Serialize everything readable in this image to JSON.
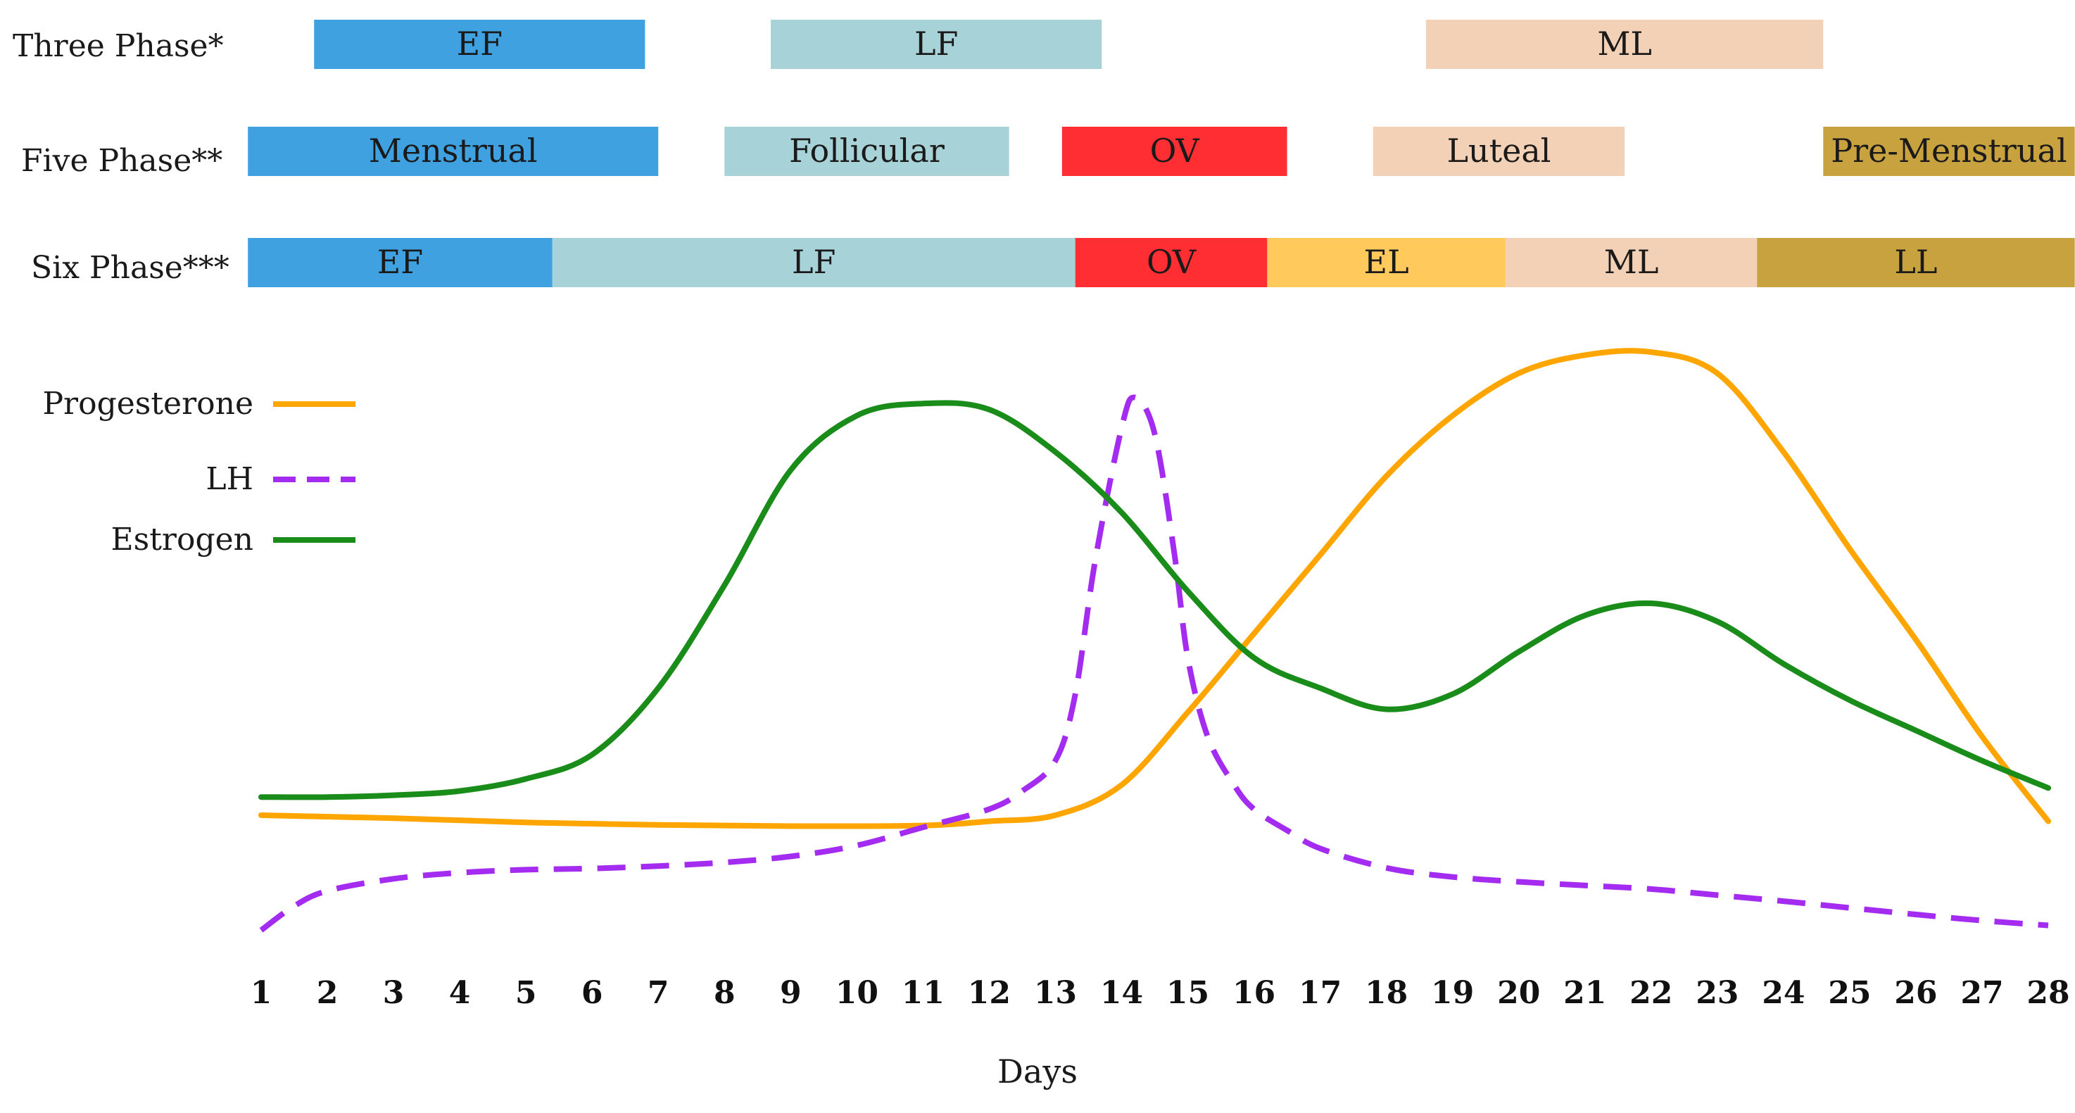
{
  "chart_data": {
    "type": "line",
    "title": "",
    "xlabel": "Days",
    "ylabel": "",
    "x": [
      1,
      2,
      3,
      4,
      5,
      6,
      7,
      8,
      9,
      10,
      11,
      12,
      13,
      14,
      15,
      16,
      17,
      18,
      19,
      20,
      21,
      22,
      23,
      24,
      25,
      26,
      27,
      28
    ],
    "xlim": [
      1,
      28
    ],
    "ylim": [
      0,
      100
    ],
    "grid": false,
    "legend_position": "upper-left",
    "phase_rows": [
      {
        "label": "Three Phase*",
        "phases": [
          {
            "label": "EF",
            "start": 1.8,
            "end": 6.8,
            "color": "#3fa1e0"
          },
          {
            "label": "LF",
            "start": 8.7,
            "end": 13.7,
            "color": "#a7d2d8"
          },
          {
            "label": "ML",
            "start": 18.6,
            "end": 24.6,
            "color": "#f3d1b6"
          }
        ]
      },
      {
        "label": "Five Phase**",
        "phases": [
          {
            "label": "Menstrual",
            "start": 0.8,
            "end": 7.0,
            "color": "#3fa1e0"
          },
          {
            "label": "Follicular",
            "start": 8.0,
            "end": 12.3,
            "color": "#a7d2d8"
          },
          {
            "label": "OV",
            "start": 13.1,
            "end": 16.5,
            "color": "#ff2e33"
          },
          {
            "label": "Luteal",
            "start": 17.8,
            "end": 21.6,
            "color": "#f3d1b6"
          },
          {
            "label": "Pre-Menstrual",
            "start": 24.6,
            "end": 28.4,
            "color": "#c9a240"
          }
        ]
      },
      {
        "label": "Six Phase***",
        "phases": [
          {
            "label": "EF",
            "start": 0.8,
            "end": 5.4,
            "color": "#3fa1e0"
          },
          {
            "label": "LF",
            "start": 5.4,
            "end": 13.3,
            "color": "#a7d2d8"
          },
          {
            "label": "OV",
            "start": 13.3,
            "end": 16.2,
            "color": "#ff2e33"
          },
          {
            "label": "EL",
            "start": 16.2,
            "end": 19.8,
            "color": "#ffc95c"
          },
          {
            "label": "ML",
            "start": 19.8,
            "end": 23.6,
            "color": "#f3d1b6"
          },
          {
            "label": "LL",
            "start": 23.6,
            "end": 28.4,
            "color": "#c9a240"
          }
        ]
      }
    ],
    "series": [
      {
        "name": "Progesterone",
        "color": "#ffa500",
        "style": "solid",
        "x": [
          1,
          3,
          5,
          7,
          9,
          11,
          12,
          13,
          14,
          15,
          16,
          17,
          18,
          19,
          20,
          21,
          22,
          23,
          24,
          25,
          26,
          27,
          28
        ],
        "values": [
          20,
          19.5,
          18.8,
          18.4,
          18.2,
          18.3,
          19,
          20,
          25,
          37,
          50,
          63,
          76,
          86,
          93,
          96,
          96.5,
          93,
          80,
          64,
          49,
          33,
          19
        ]
      },
      {
        "name": "LH",
        "color": "#a32cf0",
        "style": "dashed",
        "x": [
          1,
          1.5,
          2,
          3,
          4,
          5,
          6,
          7,
          8,
          9,
          10,
          11,
          12,
          12.5,
          13,
          13.3,
          13.6,
          14,
          14.2,
          14.5,
          14.8,
          15,
          15.3,
          15.7,
          16,
          16.5,
          17,
          18,
          19,
          20,
          21,
          22,
          23,
          24,
          25,
          26,
          27,
          28
        ],
        "values": [
          1,
          5,
          7.5,
          9.5,
          10.5,
          11,
          11.2,
          11.6,
          12.2,
          13.2,
          15,
          18,
          21,
          24,
          29,
          40,
          62,
          84,
          89,
          83,
          63,
          46,
          33,
          25,
          21,
          17.5,
          14.5,
          11.3,
          9.8,
          9,
          8.4,
          7.8,
          6.8,
          5.8,
          4.7,
          3.6,
          2.6,
          1.8
        ]
      },
      {
        "name": "Estrogen",
        "color": "#1a8c1a",
        "style": "solid",
        "x": [
          1,
          2,
          3,
          4,
          5,
          6,
          7,
          8,
          9,
          10,
          11,
          12,
          13,
          14,
          15,
          16,
          17,
          18,
          19,
          20,
          21,
          22,
          23,
          24,
          25,
          26,
          27,
          28
        ],
        "values": [
          23,
          23,
          23.3,
          24,
          26,
          30,
          41,
          58,
          77,
          86,
          88,
          87,
          80,
          70,
          57,
          46,
          41,
          37.5,
          40,
          47,
          53,
          55,
          52,
          45,
          39,
          34,
          29,
          24.5
        ]
      }
    ]
  }
}
